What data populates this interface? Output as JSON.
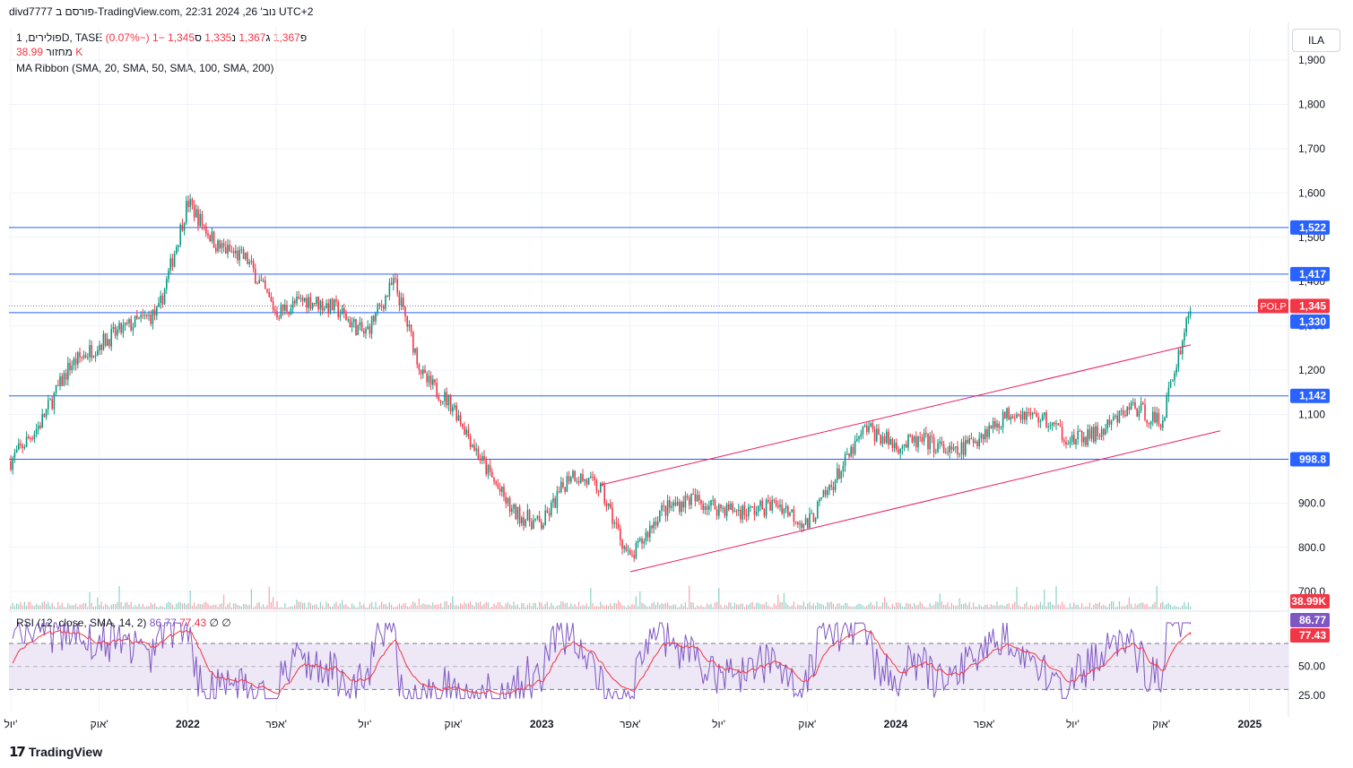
{
  "header": {
    "publish_line": "divd7777 פורסם ב-TradingView.com, נוב' 26, 2024 22:31 UTC+2"
  },
  "legend": {
    "symbol": "פולירים, 1D, TASE",
    "open_label": "פ",
    "open": "1,367",
    "high_label": "ג",
    "high": "1,367",
    "low_label": "נ",
    "low": "1,335",
    "close_label": "ס",
    "close": "1,345",
    "change": "−1 (−0.07%)",
    "volume_label": "מחזור",
    "volume": "38.99 K",
    "indicator": "MA Ribbon (SMA, 20, SMA, 50, SMA, 100, SMA, 200)"
  },
  "rsi_legend": {
    "label": "RSI (12, close, SMA, 14, 2)",
    "rsi_value": "86.77",
    "ma_value": "77.43",
    "extra1": "∅",
    "extra2": "∅"
  },
  "toolbar": {
    "currency": "ILA"
  },
  "footer": {
    "brand": "TradingView"
  },
  "colors": {
    "up": "#089981",
    "down": "#f23645",
    "hline": "#2962ff",
    "channel": "#e91e63",
    "rsi": "#7e57c2",
    "rsi_ma": "#f23645",
    "rsi_band": "#ede7f6"
  },
  "chart_data": {
    "type": "candlestick",
    "symbol_tag": "POLP",
    "y_ticks": [
      "1,900",
      "1,800",
      "1,700",
      "1,600",
      "1,500",
      "1,400",
      "1,300",
      "1,200",
      "1,100",
      "1,000",
      "900.0",
      "800.0",
      "700.0"
    ],
    "y_tick_values": [
      1900,
      1800,
      1700,
      1600,
      1500,
      1400,
      1300,
      1200,
      1100,
      1000,
      900,
      800,
      700
    ],
    "ylim": [
      660,
      1975
    ],
    "x_ticks": [
      "יול'",
      "אוק'",
      "2022",
      "אפר'",
      "יול'",
      "אוק'",
      "2023",
      "אפר'",
      "יול'",
      "אוק'",
      "2024",
      "אפר'",
      "יול'",
      "אוק'",
      "2025"
    ],
    "x_tick_dates": [
      "2021-07",
      "2021-10",
      "2022-01",
      "2022-04",
      "2022-07",
      "2022-10",
      "2023-01",
      "2023-04",
      "2023-07",
      "2023-10",
      "2024-01",
      "2024-04",
      "2024-07",
      "2024-10",
      "2025-01"
    ],
    "bold_years": [
      "2022",
      "2023",
      "2024",
      "2025"
    ],
    "price_path": [
      [
        "2021-07",
        995
      ],
      [
        "2021-08",
        1080
      ],
      [
        "2021-09",
        1210
      ],
      [
        "2021-10",
        1260
      ],
      [
        "2021-11",
        1300
      ],
      [
        "2021-12",
        1330
      ],
      [
        "2022-01",
        1580
      ],
      [
        "2022-02",
        1480
      ],
      [
        "2022-03",
        1450
      ],
      [
        "2022-04",
        1330
      ],
      [
        "2022-05",
        1360
      ],
      [
        "2022-06",
        1340
      ],
      [
        "2022-07",
        1280
      ],
      [
        "2022-08",
        1400
      ],
      [
        "2022-09",
        1180
      ],
      [
        "2022-10",
        1120
      ],
      [
        "2022-11",
        990
      ],
      [
        "2022-12",
        880
      ],
      [
        "2023-01",
        850
      ],
      [
        "2023-02",
        970
      ],
      [
        "2023-03",
        930
      ],
      [
        "2023-04",
        770
      ],
      [
        "2023-05",
        880
      ],
      [
        "2023-06",
        910
      ],
      [
        "2023-07",
        890
      ],
      [
        "2023-08",
        880
      ],
      [
        "2023-09",
        900
      ],
      [
        "2023-10",
        850
      ],
      [
        "2023-11",
        960
      ],
      [
        "2023-12",
        1070
      ],
      [
        "2024-01",
        1030
      ],
      [
        "2024-02",
        1040
      ],
      [
        "2024-03",
        1010
      ],
      [
        "2024-04",
        1060
      ],
      [
        "2024-05",
        1110
      ],
      [
        "2024-06",
        1090
      ],
      [
        "2024-07",
        1040
      ],
      [
        "2024-08",
        1060
      ],
      [
        "2024-09",
        1120
      ],
      [
        "2024-10",
        1080
      ],
      [
        "2024-11",
        1345
      ]
    ],
    "horizontal_levels": [
      {
        "value": 1522,
        "label": "1,522"
      },
      {
        "value": 1417,
        "label": "1,417"
      },
      {
        "value": 1330,
        "label": "1,330"
      },
      {
        "value": 1142,
        "label": "1,142"
      },
      {
        "value": 998.8,
        "label": "998.8"
      }
    ],
    "last_price": {
      "value": 1345,
      "label": "1,345"
    },
    "channel": {
      "upper": [
        [
          "2023-03",
          941
        ],
        [
          "2024-11",
          1257
        ]
      ],
      "lower": [
        [
          "2023-04",
          745
        ],
        [
          "2024-12",
          1063
        ]
      ]
    },
    "volume_badge": "38.99K",
    "rsi": {
      "y_ticks": [
        "50.00",
        "25.00"
      ],
      "y_tick_values": [
        50,
        25
      ],
      "upper_band": 70,
      "lower_band": 30,
      "current": {
        "value": 86.77,
        "label": "86.77"
      },
      "ma_current": {
        "value": 77.43,
        "label": "77.43"
      }
    }
  }
}
